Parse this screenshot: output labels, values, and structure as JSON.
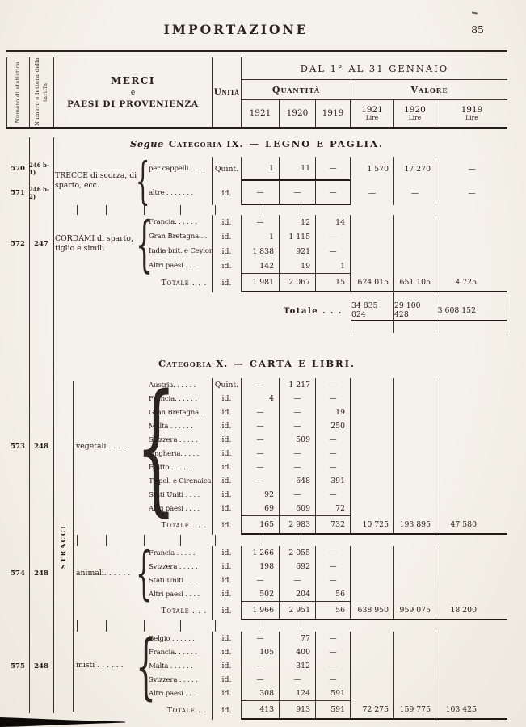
{
  "page": {
    "header_title": "IMPORTAZIONE",
    "page_number": "85"
  },
  "table_header": {
    "statistica_label": "Numero di statistica",
    "tariffa_label": "Numero e lettera della tariffa",
    "merci_line1": "MERCI",
    "merci_line2": "e",
    "merci_line3": "PAESI DI PROVENIENZA",
    "unita_label": "Unità",
    "period_label": "DAL 1° AL 31 GENNAIO",
    "quantita_label": "Quantità",
    "valore_label": "Valore",
    "qty_years": [
      "1921",
      "1920",
      "1919"
    ],
    "val_years": [
      {
        "y": "1921",
        "unit": "Lire"
      },
      {
        "y": "1920",
        "unit": "Lire"
      },
      {
        "y": "1919",
        "unit": "Lire"
      }
    ]
  },
  "sections": [
    {
      "title": {
        "prefix": "Segue",
        "name": "Categoria IX.",
        "rest": "— LEGNO E PAGLIA."
      },
      "blocks": [
        {
          "label": "TRECCE di scorza, di sparto, ecc.",
          "rows": [
            {
              "stat": "570",
              "tariff": "246 b-1)",
              "name": "per cappelli . . . .",
              "unit": "Quint.",
              "q": [
                "1",
                "11",
                "—"
              ],
              "v": [
                "1 570",
                "17 270",
                "—"
              ],
              "heavy": true
            },
            {
              "stat": "571",
              "tariff": "246 b-2)",
              "name": "altre . . . . . . .",
              "unit": "id.",
              "q": [
                "—",
                "—",
                "—"
              ],
              "v": [
                "—",
                "—",
                "—"
              ],
              "heavy": true
            }
          ]
        },
        {
          "stat": "572",
          "tariff": "247",
          "label": "CORDAMI di sparto, tiglio e simili",
          "rows": [
            {
              "name": "Francia. . . . . .",
              "unit": "id.",
              "q": [
                "—",
                "12",
                "14"
              ]
            },
            {
              "name": "Gran Bretagna . .",
              "unit": "id.",
              "q": [
                "1",
                "1 115",
                "—"
              ]
            },
            {
              "name": "India brit. e Ceylon",
              "unit": "id.",
              "q": [
                "1 838",
                "921",
                "—"
              ]
            },
            {
              "name": "Altri paesi . . . .",
              "unit": "id.",
              "q": [
                "142",
                "19",
                "1"
              ]
            }
          ],
          "total": {
            "label": "Totale . . .",
            "unit": "id.",
            "q": [
              "1 981",
              "2 067",
              "15"
            ],
            "v": [
              "624 015",
              "651 105",
              "4 725"
            ]
          }
        }
      ],
      "grand_total": {
        "label": "Totale . . .",
        "v": [
          "34 835 024",
          "29 100 428",
          "3 608 152"
        ]
      }
    },
    {
      "title": {
        "prefix": "",
        "name": "Categoria X.",
        "rest": "— CARTA E LIBRI."
      },
      "side_label": "STRACCI",
      "blocks": [
        {
          "stat": "573",
          "tariff": "248",
          "label": "vegetali . . . . .",
          "rows": [
            {
              "name": "Austria. . . . . .",
              "unit": "Quint.",
              "q": [
                "—",
                "1 217",
                "—"
              ]
            },
            {
              "name": "Francia. . . . . .",
              "unit": "id.",
              "q": [
                "4",
                "—",
                "—"
              ]
            },
            {
              "name": "Gran Bretagna. .",
              "unit": "id.",
              "q": [
                "—",
                "—",
                "19"
              ]
            },
            {
              "name": "Malta . . . . . .",
              "unit": "id.",
              "q": [
                "—",
                "—",
                "250"
              ]
            },
            {
              "name": "Svizzera . . . . .",
              "unit": "id.",
              "q": [
                "—",
                "509",
                "—"
              ]
            },
            {
              "name": "Ungheria. . . . .",
              "unit": "id.",
              "q": [
                "—",
                "—",
                "—"
              ]
            },
            {
              "name": "Egitto . . . . . .",
              "unit": "id.",
              "q": [
                "—",
                "—",
                "—"
              ]
            },
            {
              "name": "Tripol. e Cirenaica",
              "unit": "id.",
              "q": [
                "—",
                "648",
                "391"
              ]
            },
            {
              "name": "Stati Uniti . . . .",
              "unit": "id.",
              "q": [
                "92",
                "—",
                "—"
              ]
            },
            {
              "name": "Altri paesi . . . .",
              "unit": "id.",
              "q": [
                "69",
                "609",
                "72"
              ]
            }
          ],
          "total": {
            "label": "Totale . . .",
            "unit": "id.",
            "q": [
              "165",
              "2 983",
              "732"
            ],
            "v": [
              "10 725",
              "193 895",
              "47 580"
            ]
          }
        },
        {
          "stat": "574",
          "tariff": "248",
          "label": "animali. . . . . .",
          "rows": [
            {
              "name": "Francia . . . . .",
              "unit": "id.",
              "q": [
                "1 266",
                "2 055",
                "—"
              ]
            },
            {
              "name": "Svizzera . . . . .",
              "unit": "id.",
              "q": [
                "198",
                "692",
                "—"
              ]
            },
            {
              "name": "Stati Uniti . . . .",
              "unit": "id.",
              "q": [
                "—",
                "—",
                "—"
              ]
            },
            {
              "name": "Altri paesi . . . .",
              "unit": "id.",
              "q": [
                "502",
                "204",
                "56"
              ]
            }
          ],
          "total": {
            "label": "Totale . . .",
            "unit": "id.",
            "q": [
              "1 966",
              "2 951",
              "56"
            ],
            "v": [
              "638 950",
              "959 075",
              "18 200"
            ]
          }
        },
        {
          "stat": "575",
          "tariff": "248",
          "label": "misti . . . . . .",
          "rows": [
            {
              "name": "Belgio . . . . . .",
              "unit": "id.",
              "q": [
                "—",
                "77",
                "—"
              ]
            },
            {
              "name": "Francia. . . . . .",
              "unit": "id.",
              "q": [
                "105",
                "400",
                "—"
              ]
            },
            {
              "name": "Malta . . . . . .",
              "unit": "id.",
              "q": [
                "—",
                "312",
                "—"
              ]
            },
            {
              "name": "Svizzera . . . . .",
              "unit": "id.",
              "q": [
                "—",
                "—",
                "—"
              ]
            },
            {
              "name": "Altri paesi . . . .",
              "unit": "id.",
              "q": [
                "308",
                "124",
                "591"
              ]
            }
          ],
          "total": {
            "label": "Totale . .",
            "unit": "id.",
            "q": [
              "413",
              "913",
              "591"
            ],
            "v": [
              "72 275",
              "159 775",
              "103 425"
            ]
          }
        }
      ]
    }
  ]
}
